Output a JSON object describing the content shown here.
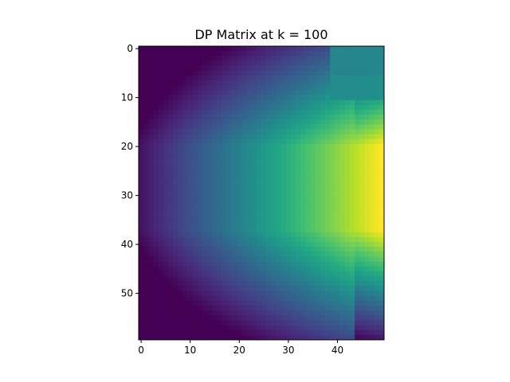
{
  "chart_data": {
    "type": "heatmap",
    "title": "DP Matrix at k = 100",
    "xlabel": "",
    "ylabel": "",
    "colormap": "viridis",
    "n_rows": 60,
    "n_cols": 50,
    "xlim": [
      -0.5,
      49.5
    ],
    "ylim": [
      59.5,
      -0.5
    ],
    "x_ticks": [
      0,
      10,
      20,
      30,
      40
    ],
    "y_ticks": [
      0,
      10,
      20,
      30,
      40,
      50
    ],
    "x_tick_labels": [
      "0",
      "10",
      "20",
      "30",
      "40"
    ],
    "y_tick_labels": [
      "0",
      "10",
      "20",
      "30",
      "40",
      "50"
    ],
    "value_range": [
      0,
      1
    ],
    "value_model": {
      "description_of_values": "normalized DP value per cell; increases with column index and peaks near rows 20-37",
      "peak_rows": [
        20,
        37
      ],
      "notch_rows": [
        0,
        10
      ],
      "notch_cols": [
        39,
        49
      ],
      "notch_value": 0.45
    },
    "grid": false,
    "legend": "none"
  }
}
